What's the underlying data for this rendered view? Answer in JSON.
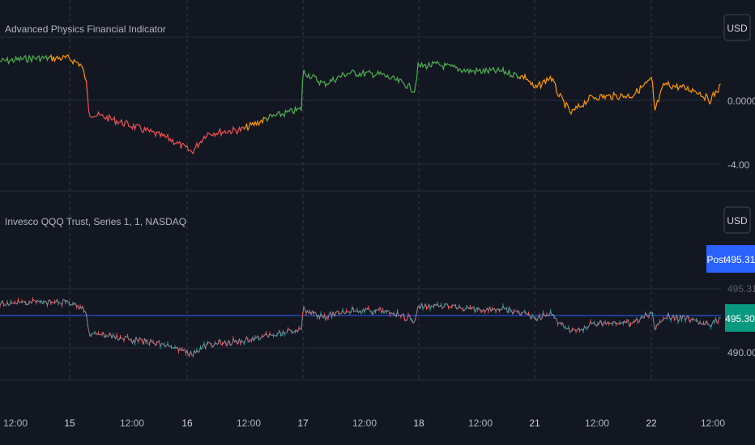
{
  "colors": {
    "background": "#131722",
    "grid": "#2a2e39",
    "vgrid": "#363a45",
    "separator": "#2a2e39",
    "indicator_green": "#4caf50",
    "indicator_orange": "#ff9800",
    "indicator_red": "#ef5350",
    "price_line": "#2962ff",
    "post_badge": "#2962ff",
    "last_badge": "#089981",
    "candle_up": "#26a69a",
    "candle_down": "#ef5350"
  },
  "indicator_pane": {
    "title": "Advanced Physics Financial Indicator",
    "currency_button": "USD",
    "axis_labels": [
      "0.0000",
      "-4.00"
    ],
    "zones": [
      {
        "from": 0,
        "to": 0.07,
        "color": "indicator_green"
      },
      {
        "from": 0.07,
        "to": 0.12,
        "color": "indicator_orange"
      },
      {
        "from": 0.12,
        "to": 0.34,
        "color": "indicator_red"
      },
      {
        "from": 0.34,
        "to": 0.37,
        "color": "indicator_orange"
      },
      {
        "from": 0.37,
        "to": 0.72,
        "color": "indicator_green"
      },
      {
        "from": 0.72,
        "to": 1.0,
        "color": "indicator_orange"
      }
    ]
  },
  "price_pane": {
    "title": "Invesco QQQ Trust, Series 1, 1, NASDAQ",
    "currency_button": "USD",
    "post_badge": {
      "label": "Post",
      "value": "495.31"
    },
    "ghost_value": "495.31",
    "last_badge": "495.30",
    "axis_labels": [
      "490.00"
    ]
  },
  "time_axis": {
    "labels": [
      {
        "text": "12:00",
        "day": false
      },
      {
        "text": "15",
        "day": true
      },
      {
        "text": "12:00",
        "day": false
      },
      {
        "text": "16",
        "day": true
      },
      {
        "text": "12:00",
        "day": false
      },
      {
        "text": "17",
        "day": true
      },
      {
        "text": "12:00",
        "day": false
      },
      {
        "text": "18",
        "day": true
      },
      {
        "text": "12:00",
        "day": false
      },
      {
        "text": "21",
        "day": true
      },
      {
        "text": "12:00",
        "day": false
      },
      {
        "text": "22",
        "day": true
      },
      {
        "text": "12:00",
        "day": false
      }
    ]
  }
}
